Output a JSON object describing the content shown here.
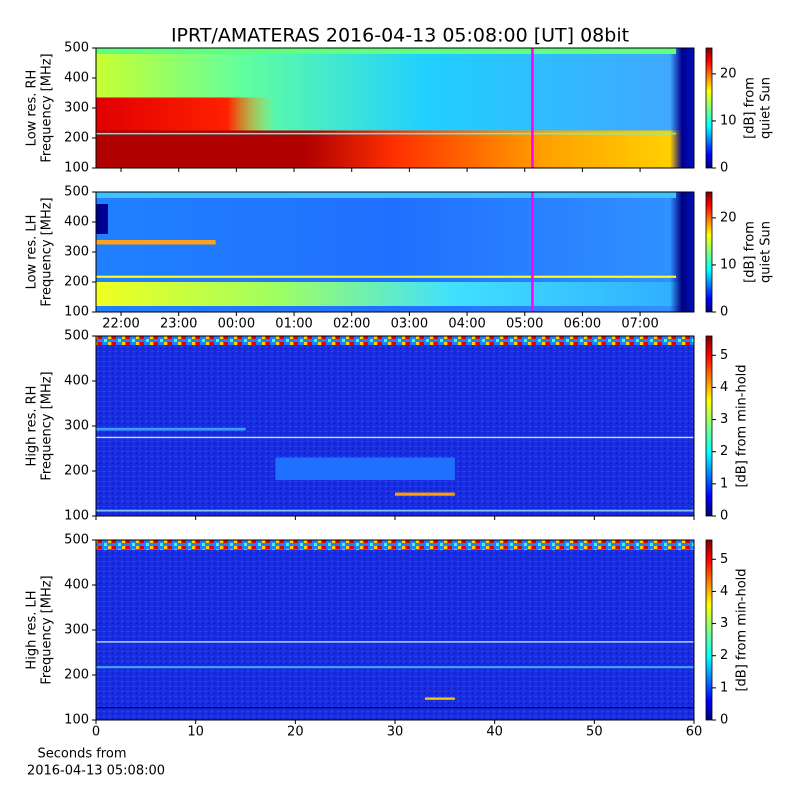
{
  "chart_data": [
    {
      "type": "heatmap",
      "title": "IPRT/AMATERAS 2016-04-13 05:08:00 [UT]   08bit",
      "ylabel": [
        "Low res. RH",
        "Frequency [MHz]"
      ],
      "xlim": [
        21.566,
        31.935
      ],
      "xticks": [],
      "xticklabels": false,
      "ylim": [
        100,
        500
      ],
      "yticks": [
        100,
        200,
        300,
        400,
        500
      ],
      "vline": 29.133,
      "vline_color": "#ff00ff",
      "colorbar_label": [
        "[dB] from",
        "quiet Sun"
      ],
      "clim": [
        0,
        25.5
      ],
      "cticks": [
        0,
        10,
        20
      ]
    },
    {
      "type": "heatmap",
      "ylabel": [
        "Low res. LH",
        "Frequency [MHz]"
      ],
      "xlim": [
        21.566,
        31.935
      ],
      "xticks": [
        {
          "value": 22,
          "label": "22:00"
        },
        {
          "value": 23,
          "label": "23:00"
        },
        {
          "value": 24,
          "label": "00:00"
        },
        {
          "value": 25,
          "label": "01:00"
        },
        {
          "value": 26,
          "label": "02:00"
        },
        {
          "value": 27,
          "label": "03:00"
        },
        {
          "value": 28,
          "label": "04:00"
        },
        {
          "value": 29,
          "label": "05:00"
        },
        {
          "value": 30,
          "label": "06:00"
        },
        {
          "value": 31,
          "label": "07:00"
        }
      ],
      "xticklabels": true,
      "ylim": [
        100,
        500
      ],
      "yticks": [
        100,
        200,
        300,
        400,
        500
      ],
      "vline": 29.133,
      "vline_color": "#ff00ff",
      "colorbar_label": [
        "[dB] from",
        "quiet Sun"
      ],
      "clim": [
        0,
        25.5
      ],
      "cticks": [
        0,
        10,
        20
      ]
    },
    {
      "type": "heatmap",
      "ylabel": [
        "High res. RH",
        "Frequency [MHz]"
      ],
      "xlim": [
        0,
        60
      ],
      "xticks": [
        0,
        10,
        20,
        30,
        40,
        50,
        60
      ],
      "xticklabels": false,
      "ylim": [
        100,
        500
      ],
      "yticks": [
        100,
        200,
        300,
        400,
        500
      ],
      "colorbar_label": [
        "[dB] from min-hold"
      ],
      "clim": [
        0,
        5.6
      ],
      "cticks": [
        0,
        1,
        2,
        3,
        4,
        5
      ]
    },
    {
      "type": "heatmap",
      "ylabel": [
        "High res. LH",
        "Frequency [MHz]"
      ],
      "xlabel": [
        "Seconds from",
        "2016-04-13 05:08:00"
      ],
      "xlim": [
        0,
        60
      ],
      "xticks": [
        0,
        10,
        20,
        30,
        40,
        50,
        60
      ],
      "xticklabels": true,
      "ylim": [
        100,
        500
      ],
      "yticks": [
        100,
        200,
        300,
        400,
        500
      ],
      "colorbar_label": [
        "[dB] from min-hold"
      ],
      "clim": [
        0,
        5.6
      ],
      "cticks": [
        0,
        1,
        2,
        3,
        4,
        5
      ]
    }
  ]
}
